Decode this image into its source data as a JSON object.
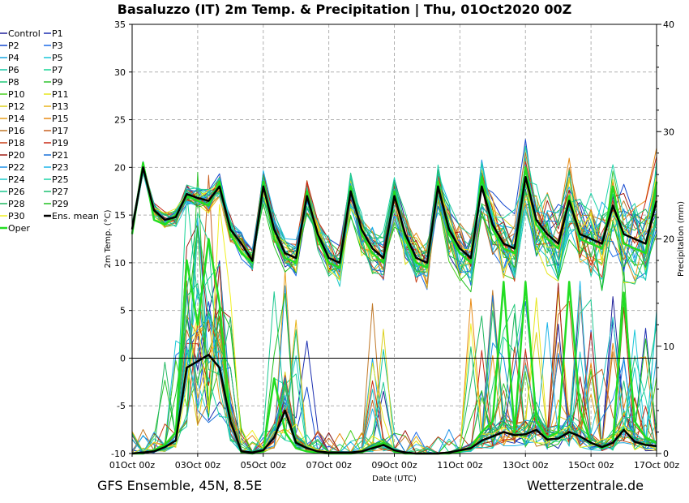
{
  "header": {
    "title": "Basaluzzo  (IT)  2m Temp. & Precipitation | Thu, 01Oct2020 00Z"
  },
  "footer": {
    "model": "GFS Ensemble, 45N, 8.5E",
    "site": "Wetterzentrale.de"
  },
  "chart_data": {
    "type": "line",
    "title": "Basaluzzo  (IT)  2m Temp. & Precipitation | Thu, 01Oct2020 00Z",
    "xlabel": "Date (UTC)",
    "ylabel": "2m Temp. (°C)",
    "y2label": "Precipitation (mm)",
    "ylim": [
      -10,
      35
    ],
    "y2lim": [
      0,
      40
    ],
    "xlim": [
      0,
      96
    ],
    "x_tick_labels": [
      "01Oct 00z",
      "03Oct 00z",
      "05Oct 00z",
      "07Oct 00z",
      "09Oct 00z",
      "11Oct 00z",
      "13Oct 00z",
      "15Oct 00z",
      "17Oct 00z"
    ],
    "y_ticks": [
      -10,
      -5,
      0,
      5,
      10,
      15,
      20,
      25,
      30,
      35
    ],
    "y2_ticks": [
      0,
      10,
      20,
      30,
      40
    ],
    "grid": true,
    "legend_position": "left",
    "legend": [
      {
        "name": "Control",
        "color": "#20209a"
      },
      {
        "name": "P1",
        "color": "#1c2fb0"
      },
      {
        "name": "P2",
        "color": "#1448cf"
      },
      {
        "name": "P3",
        "color": "#1c6ae8"
      },
      {
        "name": "P4",
        "color": "#18a6e0"
      },
      {
        "name": "P5",
        "color": "#18c6d8"
      },
      {
        "name": "P6",
        "color": "#14c8a4"
      },
      {
        "name": "P7",
        "color": "#14d494"
      },
      {
        "name": "P8",
        "color": "#20c878"
      },
      {
        "name": "P9",
        "color": "#2ec22e"
      },
      {
        "name": "P10",
        "color": "#48d020"
      },
      {
        "name": "P11",
        "color": "#e6e61c"
      },
      {
        "name": "P12",
        "color": "#dcd01c"
      },
      {
        "name": "P13",
        "color": "#e8b41c"
      },
      {
        "name": "P14",
        "color": "#e8a01c"
      },
      {
        "name": "P15",
        "color": "#e88a14"
      },
      {
        "name": "P16",
        "color": "#c07828"
      },
      {
        "name": "P17",
        "color": "#c86020"
      },
      {
        "name": "P18",
        "color": "#c84018"
      },
      {
        "name": "P19",
        "color": "#c82814"
      },
      {
        "name": "P20",
        "color": "#a01c14"
      },
      {
        "name": "P21",
        "color": "#1870d8"
      },
      {
        "name": "P22",
        "color": "#1c90e8"
      },
      {
        "name": "P23",
        "color": "#1cb4e8"
      },
      {
        "name": "P24",
        "color": "#1cc8c8"
      },
      {
        "name": "P25",
        "color": "#1cd4a8"
      },
      {
        "name": "P26",
        "color": "#1cc890"
      },
      {
        "name": "P27",
        "color": "#1cc070"
      },
      {
        "name": "P28",
        "color": "#20b860"
      },
      {
        "name": "P29",
        "color": "#20c020"
      },
      {
        "name": "P30",
        "color": "#f0f020"
      },
      {
        "name": "Ens. mean",
        "color": "#000000"
      },
      {
        "name": "Oper",
        "color": "#22dd22"
      }
    ],
    "series": [
      {
        "name": "Ens. mean",
        "kind": "temperature",
        "x": [
          0,
          2,
          4,
          6,
          8,
          10,
          12,
          14,
          16,
          18,
          20,
          22,
          24,
          26,
          28,
          30,
          32,
          34,
          36,
          38,
          40,
          42,
          44,
          46,
          48,
          50,
          52,
          54,
          56,
          58,
          60,
          62,
          64,
          66,
          68,
          70,
          72,
          74,
          76,
          78,
          80,
          82,
          84,
          86,
          88,
          90,
          92,
          94,
          96
        ],
        "values": [
          13.5,
          20.0,
          15.5,
          14.5,
          14.8,
          17.2,
          16.8,
          16.5,
          18.0,
          13.5,
          12.0,
          10.2,
          18.0,
          13.5,
          11.0,
          10.5,
          17.0,
          13.0,
          10.5,
          10.0,
          17.5,
          13.5,
          11.5,
          10.5,
          17.0,
          13.0,
          10.5,
          10.0,
          18.0,
          13.5,
          11.5,
          10.5,
          18.0,
          14.0,
          12.0,
          11.5,
          19.0,
          14.5,
          13.0,
          12.0,
          16.5,
          13.0,
          12.5,
          12.0,
          16.0,
          13.0,
          12.5,
          12.0,
          16.5
        ]
      },
      {
        "name": "Ens. mean",
        "kind": "precipitation",
        "x": [
          0,
          2,
          4,
          6,
          8,
          10,
          12,
          14,
          16,
          18,
          20,
          22,
          24,
          26,
          28,
          30,
          32,
          34,
          36,
          38,
          40,
          42,
          44,
          46,
          48,
          50,
          52,
          54,
          56,
          58,
          60,
          62,
          64,
          66,
          68,
          70,
          72,
          74,
          76,
          78,
          80,
          82,
          84,
          86,
          88,
          90,
          92,
          94,
          96
        ],
        "values": [
          0,
          0.1,
          0.2,
          0.6,
          1.2,
          8.0,
          8.6,
          9.2,
          8.0,
          3.0,
          0.2,
          0.1,
          0.3,
          1.5,
          4.0,
          1.0,
          0.5,
          0.2,
          0.1,
          0.1,
          0.1,
          0.2,
          0.5,
          0.8,
          0.3,
          0.1,
          0,
          0,
          0,
          0.1,
          0.3,
          0.5,
          1.2,
          1.6,
          2.0,
          1.7,
          1.8,
          2.2,
          1.3,
          1.4,
          2.0,
          1.6,
          1.0,
          0.6,
          1.0,
          2.2,
          1.1,
          0.8,
          0.7
        ]
      },
      {
        "name": "Oper",
        "kind": "temperature",
        "x": [
          0,
          2,
          4,
          6,
          8,
          10,
          12,
          14,
          16,
          18,
          20,
          22,
          24,
          26,
          28,
          30,
          32,
          34,
          36,
          38,
          40,
          42,
          44,
          46,
          48,
          50,
          52,
          54,
          56,
          58,
          60,
          62,
          64,
          66,
          68,
          70,
          72,
          74,
          76,
          78,
          80,
          82,
          84,
          86,
          88,
          90,
          92,
          94,
          96
        ],
        "values": [
          13.0,
          20.5,
          14.5,
          14.0,
          15.0,
          17.0,
          16.5,
          16.0,
          18.5,
          13.0,
          11.0,
          10.0,
          18.5,
          12.5,
          10.5,
          10.0,
          17.5,
          12.5,
          10.0,
          9.5,
          18.0,
          13.0,
          11.0,
          10.0,
          17.5,
          12.5,
          10.0,
          9.5,
          18.5,
          13.0,
          11.0,
          10.0,
          19.0,
          13.5,
          11.5,
          11.0,
          20.0,
          14.0,
          12.5,
          11.5,
          17.0,
          12.5,
          12.0,
          11.5,
          18.0,
          12.0,
          11.5,
          11.0,
          18.5
        ]
      },
      {
        "name": "Oper",
        "kind": "precipitation",
        "x": [
          0,
          2,
          4,
          6,
          8,
          10,
          12,
          14,
          16,
          18,
          20,
          22,
          24,
          26,
          28,
          30,
          32,
          34,
          36,
          38,
          40,
          42,
          44,
          46,
          48,
          50,
          52,
          54,
          56,
          58,
          60,
          62,
          64,
          66,
          68,
          70,
          72,
          74,
          76,
          78,
          80,
          82,
          84,
          86,
          88,
          90,
          92,
          94,
          96
        ],
        "values": [
          0,
          0,
          0.3,
          0.8,
          2.0,
          18.0,
          12.0,
          20.0,
          14.0,
          3.0,
          0.1,
          0,
          0.2,
          7.0,
          2.0,
          0.5,
          0.2,
          0.1,
          0,
          0,
          0,
          0.1,
          0.6,
          1.0,
          0.2,
          0,
          0,
          0,
          0,
          0,
          0.2,
          0.6,
          2.0,
          3.0,
          16.0,
          2.0,
          16.0,
          3.0,
          1.5,
          2.0,
          16.0,
          4.0,
          1.0,
          0.5,
          1.0,
          15.0,
          3.0,
          1.5,
          1.0
        ]
      }
    ]
  }
}
